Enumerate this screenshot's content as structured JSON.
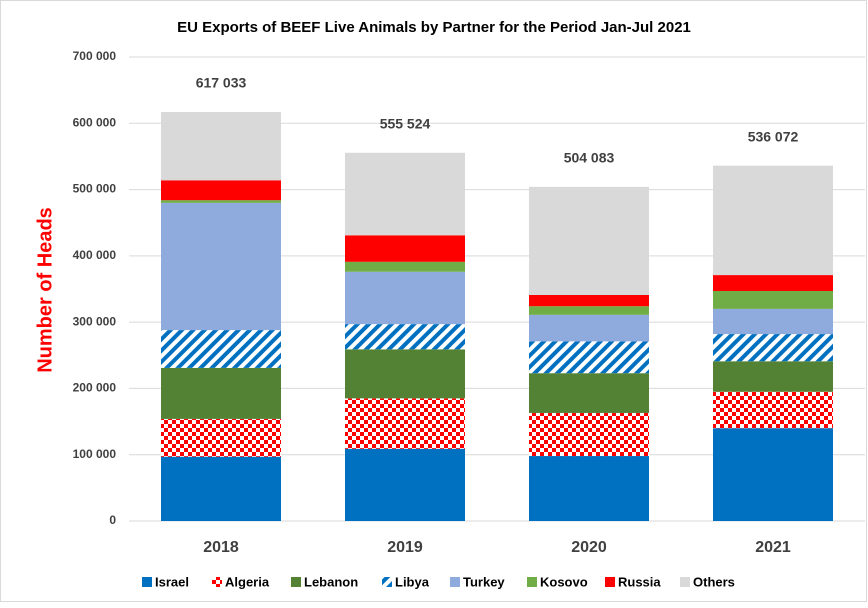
{
  "chart_data": {
    "type": "stacked-bar",
    "title": "EU Exports of BEEF Live Animals by Partner for the Period Jan-Jul 2021",
    "y_label": "Number of Heads",
    "categories": [
      "2018",
      "2019",
      "2020",
      "2021"
    ],
    "series": [
      {
        "name": "Israel",
        "color": "#0070c0",
        "pattern": "solid",
        "values": [
          97000,
          109000,
          98000,
          140000
        ]
      },
      {
        "name": "Algeria",
        "color": "#ff0000",
        "pattern": "checker",
        "values": [
          57000,
          76000,
          65000,
          55000
        ]
      },
      {
        "name": "Lebanon",
        "color": "#548235",
        "pattern": "solid",
        "values": [
          77000,
          74000,
          60000,
          46000
        ]
      },
      {
        "name": "Libya",
        "color": "#0070c0",
        "pattern": "diagonal",
        "values": [
          57000,
          38000,
          48000,
          41000
        ]
      },
      {
        "name": "Turkey",
        "color": "#8faadc",
        "pattern": "solid",
        "values": [
          192000,
          79000,
          40000,
          38000
        ]
      },
      {
        "name": "Kosovo",
        "color": "#70ad47",
        "pattern": "solid",
        "values": [
          4000,
          15000,
          13000,
          27000
        ]
      },
      {
        "name": "Russia",
        "color": "#ff0000",
        "pattern": "solid",
        "values": [
          30000,
          40000,
          17000,
          24000
        ]
      },
      {
        "name": "Others",
        "color": "#d9d9d9",
        "pattern": "solid",
        "values": [
          103033,
          124524,
          163083,
          165072
        ]
      }
    ],
    "totals": {
      "values": [
        617033,
        555524,
        504083,
        536072
      ],
      "value_labels": [
        "617 033",
        "555 524",
        "504 083",
        "536 072"
      ]
    },
    "ylim": [
      0,
      700000
    ],
    "yticks": [
      0,
      {
        "value": 100000,
        "label": "100 000"
      },
      {
        "value": 200000,
        "label": "200 000"
      },
      {
        "value": 300000,
        "label": "300 000"
      },
      {
        "value": 400000,
        "label": "400 000"
      },
      {
        "value": 500000,
        "label": "500 000"
      },
      {
        "value": 600000,
        "label": "600 000"
      },
      {
        "value": 700000,
        "label": "700 000"
      }
    ],
    "grid": true,
    "legend": "bottom"
  }
}
